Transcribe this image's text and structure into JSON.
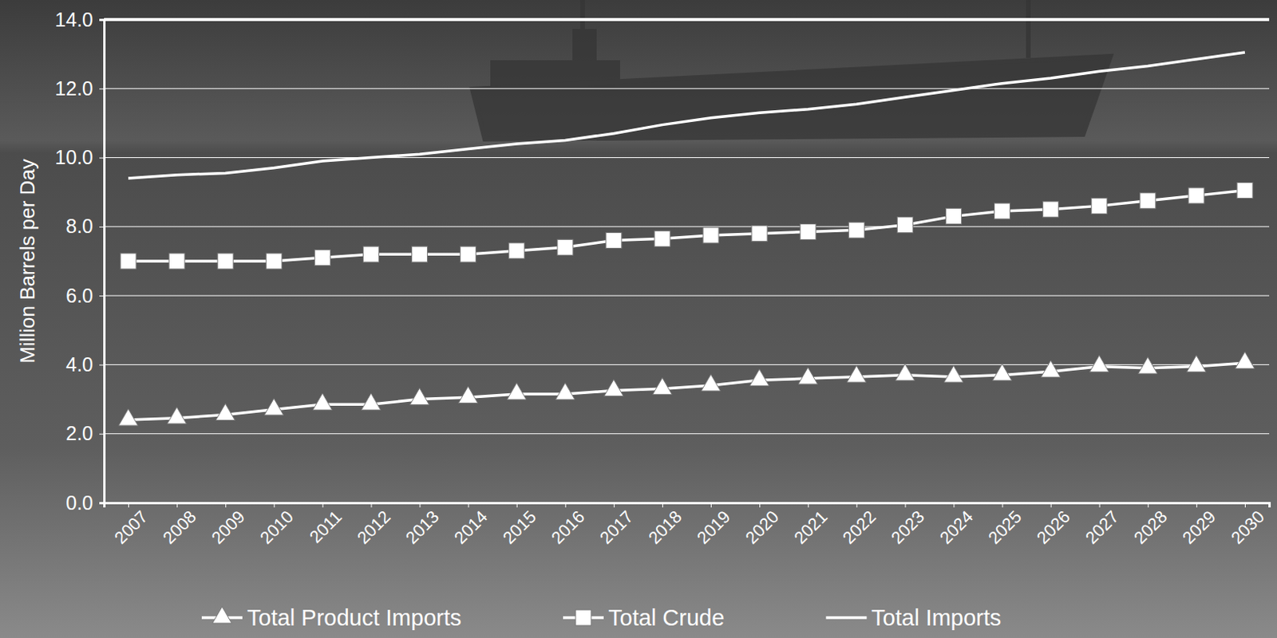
{
  "chart_data": {
    "type": "line",
    "y_label": "Million Barrels per Day",
    "categories": [
      "2007",
      "2008",
      "2009",
      "2010",
      "2011",
      "2012",
      "2013",
      "2014",
      "2015",
      "2016",
      "2017",
      "2018",
      "2019",
      "2020",
      "2021",
      "2022",
      "2023",
      "2024",
      "2025",
      "2026",
      "2027",
      "2028",
      "2029",
      "2030"
    ],
    "series": [
      {
        "name": "Total Product Imports",
        "color": "#ffffff",
        "marker": "triangle",
        "values": [
          2.4,
          2.45,
          2.55,
          2.7,
          2.85,
          2.85,
          3.0,
          3.05,
          3.15,
          3.15,
          3.25,
          3.3,
          3.4,
          3.55,
          3.6,
          3.65,
          3.7,
          3.65,
          3.7,
          3.8,
          3.95,
          3.9,
          3.95,
          4.05
        ]
      },
      {
        "name": "Total Crude",
        "color": "#ffffff",
        "marker": "square",
        "values": [
          7.0,
          7.0,
          7.0,
          7.0,
          7.1,
          7.2,
          7.2,
          7.2,
          7.3,
          7.4,
          7.6,
          7.65,
          7.75,
          7.8,
          7.85,
          7.9,
          8.05,
          8.3,
          8.45,
          8.5,
          8.6,
          8.75,
          8.9,
          9.05
        ]
      },
      {
        "name": "Total Imports",
        "color": "#ffffff",
        "marker": "none",
        "values": [
          9.4,
          9.5,
          9.55,
          9.7,
          9.9,
          10.0,
          10.1,
          10.25,
          10.4,
          10.5,
          10.7,
          10.95,
          11.15,
          11.3,
          11.4,
          11.55,
          11.75,
          11.95,
          12.15,
          12.3,
          12.5,
          12.65,
          12.85,
          13.05
        ]
      }
    ],
    "ylim": [
      0,
      14
    ],
    "yticks": [
      {
        "value": 0,
        "label": "0.0"
      },
      {
        "value": 2,
        "label": "2.0"
      },
      {
        "value": 4,
        "label": "4.0"
      },
      {
        "value": 6,
        "label": "6.0"
      },
      {
        "value": 8,
        "label": "8.0"
      },
      {
        "value": 10,
        "label": "10.0"
      },
      {
        "value": 12,
        "label": "12.0"
      },
      {
        "value": 14,
        "label": "14.0"
      }
    ],
    "grid": true,
    "legend": "bottom"
  }
}
